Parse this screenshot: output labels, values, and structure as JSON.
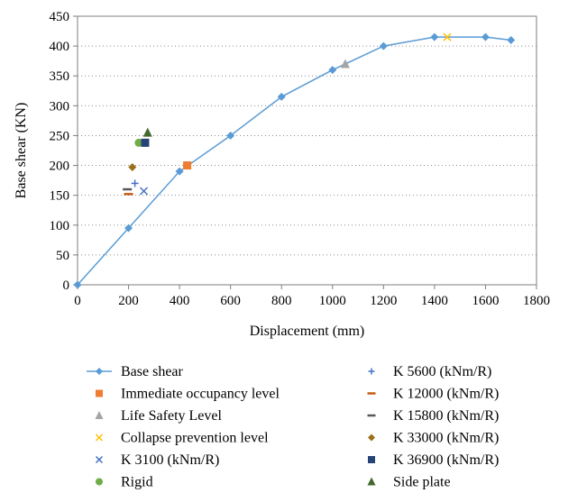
{
  "chart_data": {
    "type": "scatter",
    "xlabel": "Displacement (mm)",
    "ylabel": "Base shear (KN)",
    "xlim": [
      0,
      1800
    ],
    "ylim": [
      0,
      450
    ],
    "xticks": [
      "0",
      "200",
      "400",
      "600",
      "800",
      "1000",
      "1200",
      "1400",
      "1600",
      "1800"
    ],
    "yticks": [
      "0",
      "50",
      "100",
      "150",
      "200",
      "250",
      "300",
      "350",
      "400",
      "450"
    ],
    "grid": "horizontal-dotted",
    "legend_position": "bottom",
    "series": [
      {
        "name": "Base shear",
        "marker": "diamond-line",
        "color": "#5b9bd5",
        "points": [
          [
            0,
            0
          ],
          [
            200,
            95
          ],
          [
            400,
            190
          ],
          [
            600,
            250
          ],
          [
            800,
            315
          ],
          [
            1000,
            360
          ],
          [
            1200,
            400
          ],
          [
            1400,
            415
          ],
          [
            1600,
            415
          ],
          [
            1700,
            410
          ]
        ]
      },
      {
        "name": "Immediate occupancy level",
        "marker": "square",
        "color": "#ed7d31",
        "points": [
          [
            430,
            200
          ]
        ]
      },
      {
        "name": "Life Safety Level",
        "marker": "triangle",
        "color": "#a5a5a5",
        "points": [
          [
            1050,
            370
          ]
        ]
      },
      {
        "name": "Collapse prevention level",
        "marker": "x",
        "color": "#ffc000",
        "points": [
          [
            1450,
            415
          ]
        ]
      },
      {
        "name": "K 3100 (kNm/R)",
        "marker": "x",
        "color": "#4472c4",
        "points": [
          [
            260,
            157
          ]
        ]
      },
      {
        "name": "Rigid",
        "marker": "circle",
        "color": "#70ad47",
        "points": [
          [
            240,
            238
          ]
        ]
      },
      {
        "name": "K 5600 (kNm/R)",
        "marker": "plus",
        "color": "#4472c4",
        "points": [
          [
            225,
            170
          ]
        ]
      },
      {
        "name": "K 12000 (kNm/R)",
        "marker": "dash",
        "color": "#c55a11",
        "points": [
          [
            200,
            152
          ]
        ]
      },
      {
        "name": "K 15800 (kNm/R)",
        "marker": "dash",
        "color": "#595959",
        "points": [
          [
            195,
            160
          ]
        ]
      },
      {
        "name": "K 33000 (kNm/R)",
        "marker": "diamond",
        "color": "#9c6f1a",
        "points": [
          [
            215,
            197
          ]
        ]
      },
      {
        "name": "K 36900 (kNm/R)",
        "marker": "square",
        "color": "#264478",
        "points": [
          [
            265,
            238
          ]
        ]
      },
      {
        "name": "Side plate",
        "marker": "triangle",
        "color": "#43682b",
        "points": [
          [
            275,
            255
          ]
        ]
      }
    ]
  }
}
